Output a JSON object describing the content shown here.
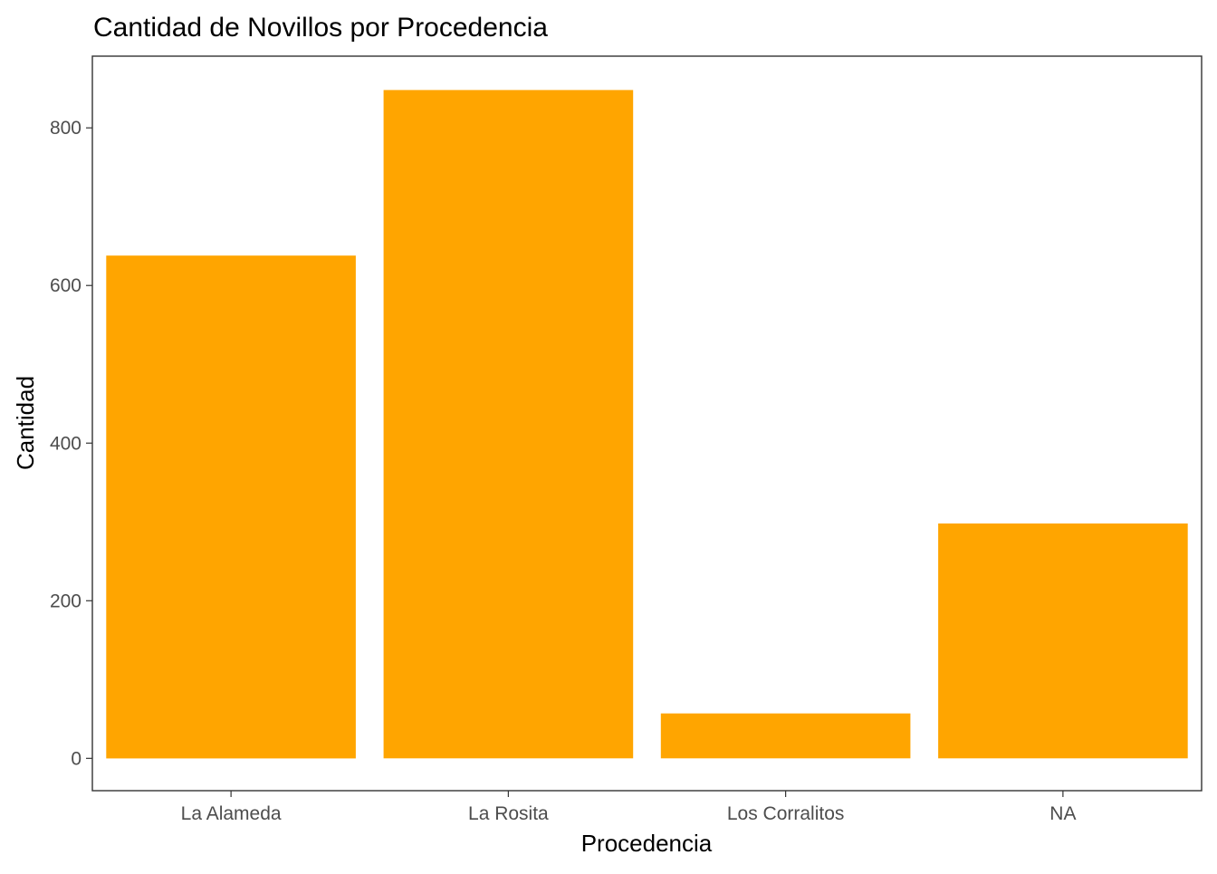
{
  "chart_data": {
    "type": "bar",
    "title": "Cantidad de Novillos por Procedencia",
    "xlabel": "Procedencia",
    "ylabel": "Cantidad",
    "categories": [
      "La Alameda",
      "La Rosita",
      "Los Corralitos",
      "NA"
    ],
    "values": [
      638,
      848,
      57,
      298
    ],
    "ylim": [
      -41,
      891
    ],
    "yticks": [
      0,
      200,
      400,
      600,
      800
    ],
    "ytick_labels": [
      "0",
      "200",
      "400",
      "600",
      "800"
    ],
    "bar_color": "#FFA500",
    "grid": false,
    "legend": "none"
  }
}
